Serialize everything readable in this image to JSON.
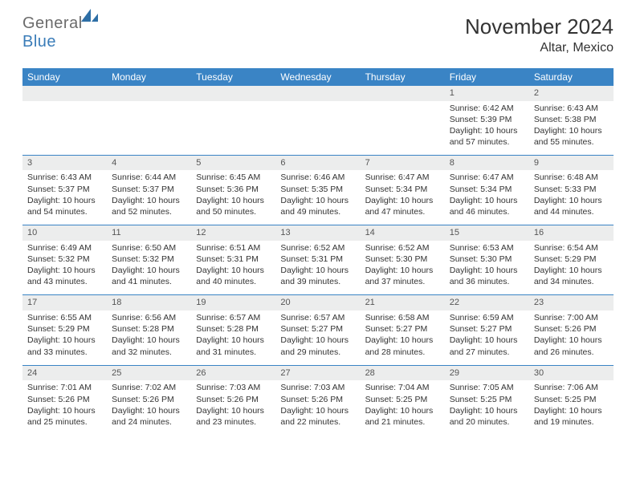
{
  "brand": {
    "part1": "General",
    "part2": "Blue"
  },
  "title": "November 2024",
  "location": "Altar, Mexico",
  "colors": {
    "header_bg": "#3a84c5",
    "daynum_bg": "#eceded",
    "text": "#333333"
  },
  "weekdays": [
    "Sunday",
    "Monday",
    "Tuesday",
    "Wednesday",
    "Thursday",
    "Friday",
    "Saturday"
  ],
  "weeks": [
    [
      null,
      null,
      null,
      null,
      null,
      {
        "n": "1",
        "sr": "Sunrise: 6:42 AM",
        "ss": "Sunset: 5:39 PM",
        "dl1": "Daylight: 10 hours",
        "dl2": "and 57 minutes."
      },
      {
        "n": "2",
        "sr": "Sunrise: 6:43 AM",
        "ss": "Sunset: 5:38 PM",
        "dl1": "Daylight: 10 hours",
        "dl2": "and 55 minutes."
      }
    ],
    [
      {
        "n": "3",
        "sr": "Sunrise: 6:43 AM",
        "ss": "Sunset: 5:37 PM",
        "dl1": "Daylight: 10 hours",
        "dl2": "and 54 minutes."
      },
      {
        "n": "4",
        "sr": "Sunrise: 6:44 AM",
        "ss": "Sunset: 5:37 PM",
        "dl1": "Daylight: 10 hours",
        "dl2": "and 52 minutes."
      },
      {
        "n": "5",
        "sr": "Sunrise: 6:45 AM",
        "ss": "Sunset: 5:36 PM",
        "dl1": "Daylight: 10 hours",
        "dl2": "and 50 minutes."
      },
      {
        "n": "6",
        "sr": "Sunrise: 6:46 AM",
        "ss": "Sunset: 5:35 PM",
        "dl1": "Daylight: 10 hours",
        "dl2": "and 49 minutes."
      },
      {
        "n": "7",
        "sr": "Sunrise: 6:47 AM",
        "ss": "Sunset: 5:34 PM",
        "dl1": "Daylight: 10 hours",
        "dl2": "and 47 minutes."
      },
      {
        "n": "8",
        "sr": "Sunrise: 6:47 AM",
        "ss": "Sunset: 5:34 PM",
        "dl1": "Daylight: 10 hours",
        "dl2": "and 46 minutes."
      },
      {
        "n": "9",
        "sr": "Sunrise: 6:48 AM",
        "ss": "Sunset: 5:33 PM",
        "dl1": "Daylight: 10 hours",
        "dl2": "and 44 minutes."
      }
    ],
    [
      {
        "n": "10",
        "sr": "Sunrise: 6:49 AM",
        "ss": "Sunset: 5:32 PM",
        "dl1": "Daylight: 10 hours",
        "dl2": "and 43 minutes."
      },
      {
        "n": "11",
        "sr": "Sunrise: 6:50 AM",
        "ss": "Sunset: 5:32 PM",
        "dl1": "Daylight: 10 hours",
        "dl2": "and 41 minutes."
      },
      {
        "n": "12",
        "sr": "Sunrise: 6:51 AM",
        "ss": "Sunset: 5:31 PM",
        "dl1": "Daylight: 10 hours",
        "dl2": "and 40 minutes."
      },
      {
        "n": "13",
        "sr": "Sunrise: 6:52 AM",
        "ss": "Sunset: 5:31 PM",
        "dl1": "Daylight: 10 hours",
        "dl2": "and 39 minutes."
      },
      {
        "n": "14",
        "sr": "Sunrise: 6:52 AM",
        "ss": "Sunset: 5:30 PM",
        "dl1": "Daylight: 10 hours",
        "dl2": "and 37 minutes."
      },
      {
        "n": "15",
        "sr": "Sunrise: 6:53 AM",
        "ss": "Sunset: 5:30 PM",
        "dl1": "Daylight: 10 hours",
        "dl2": "and 36 minutes."
      },
      {
        "n": "16",
        "sr": "Sunrise: 6:54 AM",
        "ss": "Sunset: 5:29 PM",
        "dl1": "Daylight: 10 hours",
        "dl2": "and 34 minutes."
      }
    ],
    [
      {
        "n": "17",
        "sr": "Sunrise: 6:55 AM",
        "ss": "Sunset: 5:29 PM",
        "dl1": "Daylight: 10 hours",
        "dl2": "and 33 minutes."
      },
      {
        "n": "18",
        "sr": "Sunrise: 6:56 AM",
        "ss": "Sunset: 5:28 PM",
        "dl1": "Daylight: 10 hours",
        "dl2": "and 32 minutes."
      },
      {
        "n": "19",
        "sr": "Sunrise: 6:57 AM",
        "ss": "Sunset: 5:28 PM",
        "dl1": "Daylight: 10 hours",
        "dl2": "and 31 minutes."
      },
      {
        "n": "20",
        "sr": "Sunrise: 6:57 AM",
        "ss": "Sunset: 5:27 PM",
        "dl1": "Daylight: 10 hours",
        "dl2": "and 29 minutes."
      },
      {
        "n": "21",
        "sr": "Sunrise: 6:58 AM",
        "ss": "Sunset: 5:27 PM",
        "dl1": "Daylight: 10 hours",
        "dl2": "and 28 minutes."
      },
      {
        "n": "22",
        "sr": "Sunrise: 6:59 AM",
        "ss": "Sunset: 5:27 PM",
        "dl1": "Daylight: 10 hours",
        "dl2": "and 27 minutes."
      },
      {
        "n": "23",
        "sr": "Sunrise: 7:00 AM",
        "ss": "Sunset: 5:26 PM",
        "dl1": "Daylight: 10 hours",
        "dl2": "and 26 minutes."
      }
    ],
    [
      {
        "n": "24",
        "sr": "Sunrise: 7:01 AM",
        "ss": "Sunset: 5:26 PM",
        "dl1": "Daylight: 10 hours",
        "dl2": "and 25 minutes."
      },
      {
        "n": "25",
        "sr": "Sunrise: 7:02 AM",
        "ss": "Sunset: 5:26 PM",
        "dl1": "Daylight: 10 hours",
        "dl2": "and 24 minutes."
      },
      {
        "n": "26",
        "sr": "Sunrise: 7:03 AM",
        "ss": "Sunset: 5:26 PM",
        "dl1": "Daylight: 10 hours",
        "dl2": "and 23 minutes."
      },
      {
        "n": "27",
        "sr": "Sunrise: 7:03 AM",
        "ss": "Sunset: 5:26 PM",
        "dl1": "Daylight: 10 hours",
        "dl2": "and 22 minutes."
      },
      {
        "n": "28",
        "sr": "Sunrise: 7:04 AM",
        "ss": "Sunset: 5:25 PM",
        "dl1": "Daylight: 10 hours",
        "dl2": "and 21 minutes."
      },
      {
        "n": "29",
        "sr": "Sunrise: 7:05 AM",
        "ss": "Sunset: 5:25 PM",
        "dl1": "Daylight: 10 hours",
        "dl2": "and 20 minutes."
      },
      {
        "n": "30",
        "sr": "Sunrise: 7:06 AM",
        "ss": "Sunset: 5:25 PM",
        "dl1": "Daylight: 10 hours",
        "dl2": "and 19 minutes."
      }
    ]
  ]
}
